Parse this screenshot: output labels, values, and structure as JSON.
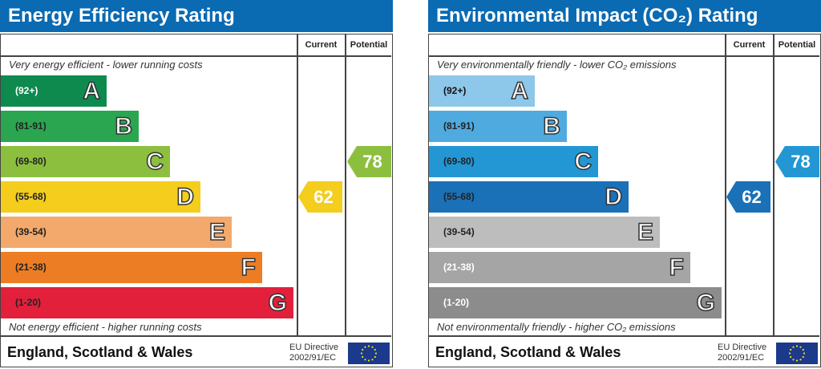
{
  "panels": [
    {
      "title": "Energy Efficiency Rating",
      "col_current": "Current",
      "col_potential": "Potential",
      "top_note": "Very energy efficient - lower running costs",
      "bottom_note": "Not energy efficient - higher running costs",
      "footer": "England, Scotland & Wales",
      "eu_line1": "EU Directive",
      "eu_line2": "2002/91/EC",
      "current": {
        "value": "62",
        "band": "D",
        "color": "#f4cd1d"
      },
      "potential": {
        "value": "78",
        "band": "C",
        "color": "#8dbf3f"
      },
      "bands": [
        {
          "letter": "A",
          "range": "(92+)",
          "color": "#0f8a4f",
          "text": "#ffffff"
        },
        {
          "letter": "B",
          "range": "(81-91)",
          "color": "#2aa650",
          "text": "#222222"
        },
        {
          "letter": "C",
          "range": "(69-80)",
          "color": "#8dbf3f",
          "text": "#222222"
        },
        {
          "letter": "D",
          "range": "(55-68)",
          "color": "#f4cd1d",
          "text": "#222222"
        },
        {
          "letter": "E",
          "range": "(39-54)",
          "color": "#f2a96b",
          "text": "#222222"
        },
        {
          "letter": "F",
          "range": "(21-38)",
          "color": "#ec7d24",
          "text": "#222222"
        },
        {
          "letter": "G",
          "range": "(1-20)",
          "color": "#e2203c",
          "text": "#222222"
        }
      ]
    },
    {
      "title": "Environmental Impact (CO₂) Rating",
      "col_current": "Current",
      "col_potential": "Potential",
      "top_note": "Very environmentally friendly - lower CO₂ emissions",
      "bottom_note": "Not environmentally friendly - higher CO₂ emissions",
      "footer": "England, Scotland & Wales",
      "eu_line1": "EU Directive",
      "eu_line2": "2002/91/EC",
      "current": {
        "value": "62",
        "band": "D",
        "color": "#1a71b8"
      },
      "potential": {
        "value": "78",
        "band": "C",
        "color": "#2397d4"
      },
      "bands": [
        {
          "letter": "A",
          "range": "(92+)",
          "color": "#8dc7ea",
          "text": "#111111"
        },
        {
          "letter": "B",
          "range": "(81-91)",
          "color": "#4faadf",
          "text": "#222222"
        },
        {
          "letter": "C",
          "range": "(69-80)",
          "color": "#2397d4",
          "text": "#222222"
        },
        {
          "letter": "D",
          "range": "(55-68)",
          "color": "#1a71b8",
          "text": "#222222"
        },
        {
          "letter": "E",
          "range": "(39-54)",
          "color": "#bdbdbd",
          "text": "#222222"
        },
        {
          "letter": "F",
          "range": "(21-38)",
          "color": "#a5a5a5",
          "text": "#ffffff"
        },
        {
          "letter": "G",
          "range": "(1-20)",
          "color": "#8c8c8c",
          "text": "#ffffff"
        }
      ]
    }
  ],
  "chart_data": [
    {
      "type": "table",
      "title": "Energy Efficiency Rating",
      "current": 62,
      "potential": 78,
      "bands": [
        "A (92+)",
        "B (81-91)",
        "C (69-80)",
        "D (55-68)",
        "E (39-54)",
        "F (21-38)",
        "G (1-20)"
      ]
    },
    {
      "type": "table",
      "title": "Environmental Impact (CO₂) Rating",
      "current": 62,
      "potential": 78,
      "bands": [
        "A (92+)",
        "B (81-91)",
        "C (69-80)",
        "D (55-68)",
        "E (39-54)",
        "F (21-38)",
        "G (1-20)"
      ]
    }
  ]
}
